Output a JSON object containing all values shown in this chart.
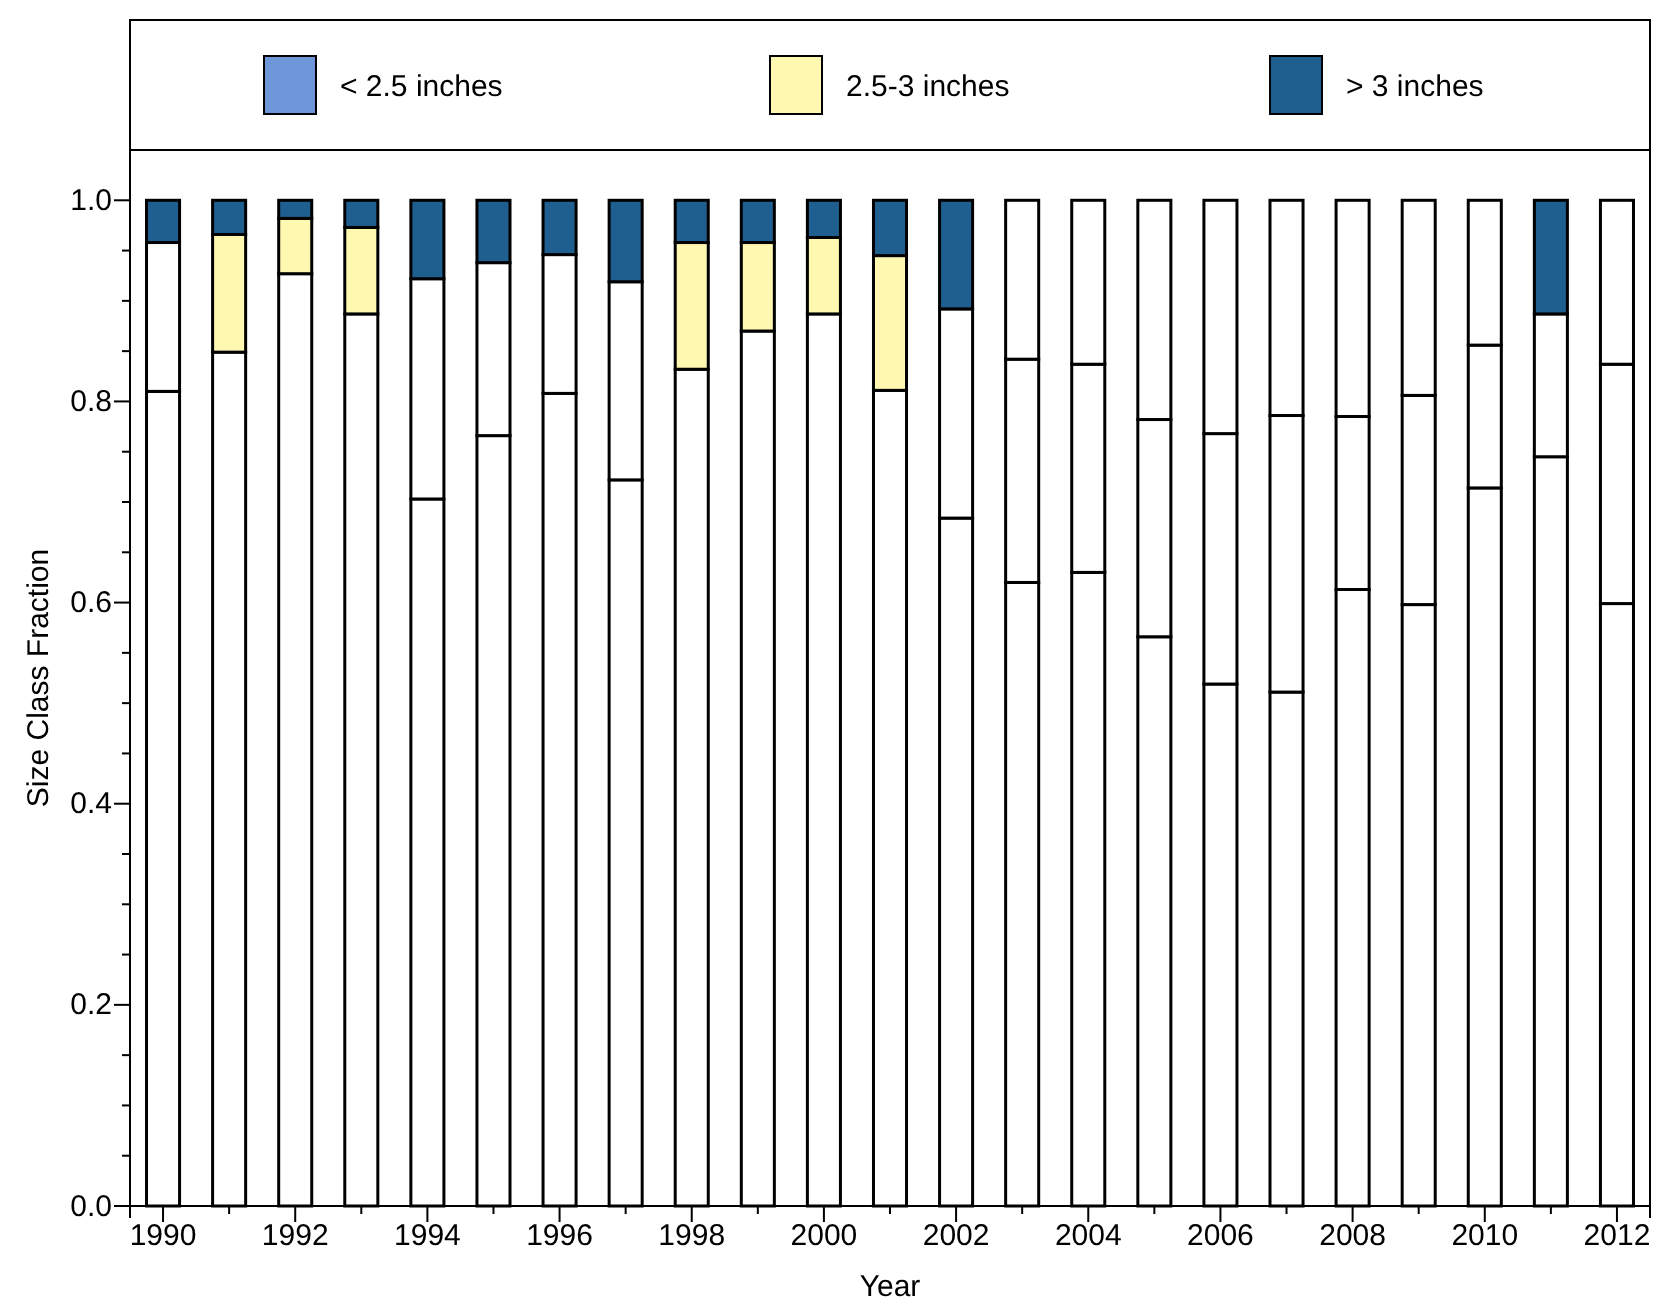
{
  "chart_data": {
    "type": "bar",
    "stacked": true,
    "xlabel": "Year",
    "ylabel": "Size Class Fraction",
    "legend": "top",
    "x": [
      1990,
      1991,
      1992,
      1993,
      1994,
      1995,
      1996,
      1997,
      1998,
      1999,
      2000,
      2001,
      2002,
      2003,
      2004,
      2005,
      2006,
      2007,
      2008,
      2009,
      2010,
      2011,
      2012
    ],
    "xlim": [
      1989.5,
      2012.5
    ],
    "xticks": [
      1990,
      {
        "value": 1991,
        "label": null
      },
      1992,
      {
        "value": 1993,
        "label": null
      },
      1994,
      {
        "value": 1995,
        "label": null
      },
      1996,
      {
        "value": 1997,
        "label": null
      },
      1998,
      {
        "value": 1999,
        "label": null
      },
      2000,
      {
        "value": 2001,
        "label": null
      },
      2002,
      {
        "value": 2003,
        "label": null
      },
      2004,
      {
        "value": 2005,
        "label": null
      },
      2006,
      {
        "value": 2007,
        "label": null
      },
      2008,
      {
        "value": 2009,
        "label": null
      },
      2010,
      {
        "value": 2011,
        "label": null
      },
      2012
    ],
    "ylim": [
      0,
      1.05
    ],
    "yticks": [
      {
        "value": 0,
        "label": "0.0"
      },
      {
        "value": 0.05,
        "label": null
      },
      {
        "value": 0.1,
        "label": null
      },
      {
        "value": 0.15,
        "label": null
      },
      {
        "value": 0.2,
        "label": "0.2"
      },
      {
        "value": 0.25,
        "label": null
      },
      {
        "value": 0.3,
        "label": null
      },
      {
        "value": 0.35,
        "label": null
      },
      {
        "value": 0.4,
        "label": "0.4"
      },
      {
        "value": 0.45,
        "label": null
      },
      {
        "value": 0.5,
        "label": null
      },
      {
        "value": 0.55,
        "label": null
      },
      {
        "value": 0.6,
        "label": "0.6"
      },
      {
        "value": 0.65,
        "label": null
      },
      {
        "value": 0.7,
        "label": null
      },
      {
        "value": 0.75,
        "label": null
      },
      {
        "value": 0.8,
        "label": "0.8"
      },
      {
        "value": 0.85,
        "label": null
      },
      {
        "value": 0.9,
        "label": null
      },
      {
        "value": 0.95,
        "label": null
      },
      {
        "value": 1,
        "label": "1.0"
      }
    ],
    "series": [
      {
        "name": "< 2.5 inches",
        "color": "#6f96d9",
        "colors": [
          "#ffffff",
          "#ffffff",
          "#ffffff",
          "#ffffff",
          "#ffffff",
          "#ffffff",
          "#ffffff",
          "#ffffff",
          "#ffffff",
          "#ffffff",
          "#ffffff",
          "#ffffff",
          "#ffffff",
          "#ffffff",
          "#ffffff",
          "#ffffff",
          "#ffffff",
          "#ffffff",
          "#ffffff",
          "#ffffff",
          "#ffffff",
          "#ffffff",
          "#ffffff"
        ],
        "values": [
          0.81,
          0.849,
          0.927,
          0.887,
          0.703,
          0.766,
          0.808,
          0.722,
          0.832,
          0.87,
          0.887,
          0.811,
          0.684,
          0.62,
          0.63,
          0.566,
          0.519,
          0.511,
          0.613,
          0.598,
          0.714,
          0.745,
          0.599
        ]
      },
      {
        "name": "2.5-3 inches",
        "color": "#fff8b0",
        "colors": [
          "#ffffff",
          "#fff8b0",
          "#fff8b0",
          "#fff8b0",
          "#ffffff",
          "#ffffff",
          "#ffffff",
          "#ffffff",
          "#fff8b0",
          "#fff8b0",
          "#fff8b0",
          "#fff8b0",
          "#ffffff",
          "#ffffff",
          "#ffffff",
          "#ffffff",
          "#ffffff",
          "#ffffff",
          "#ffffff",
          "#ffffff",
          "#ffffff",
          "#ffffff",
          "#ffffff"
        ],
        "values": [
          0.148,
          0.117,
          0.055,
          0.086,
          0.219,
          0.172,
          0.138,
          0.197,
          0.126,
          0.088,
          0.076,
          0.134,
          0.208,
          0.222,
          0.207,
          0.216,
          0.249,
          0.275,
          0.172,
          0.208,
          0.142,
          0.142,
          0.238
        ]
      },
      {
        "name": "> 3 inches",
        "color": "#1f5f8f",
        "colors": [
          "#1f5f8f",
          "#1f5f8f",
          "#1f5f8f",
          "#1f5f8f",
          "#1f5f8f",
          "#1f5f8f",
          "#1f5f8f",
          "#1f5f8f",
          "#1f5f8f",
          "#1f5f8f",
          "#1f5f8f",
          "#1f5f8f",
          "#1f5f8f",
          "#ffffff",
          "#ffffff",
          "#ffffff",
          "#ffffff",
          "#ffffff",
          "#ffffff",
          "#ffffff",
          "#ffffff",
          "#1f5f8f",
          "#ffffff"
        ],
        "values": [
          0.042,
          0.034,
          0.018,
          0.027,
          0.078,
          0.062,
          0.054,
          0.081,
          0.042,
          0.042,
          0.037,
          0.055,
          0.108,
          0.158,
          0.163,
          0.218,
          0.232,
          0.214,
          0.215,
          0.194,
          0.144,
          0.113,
          0.163
        ]
      }
    ]
  }
}
